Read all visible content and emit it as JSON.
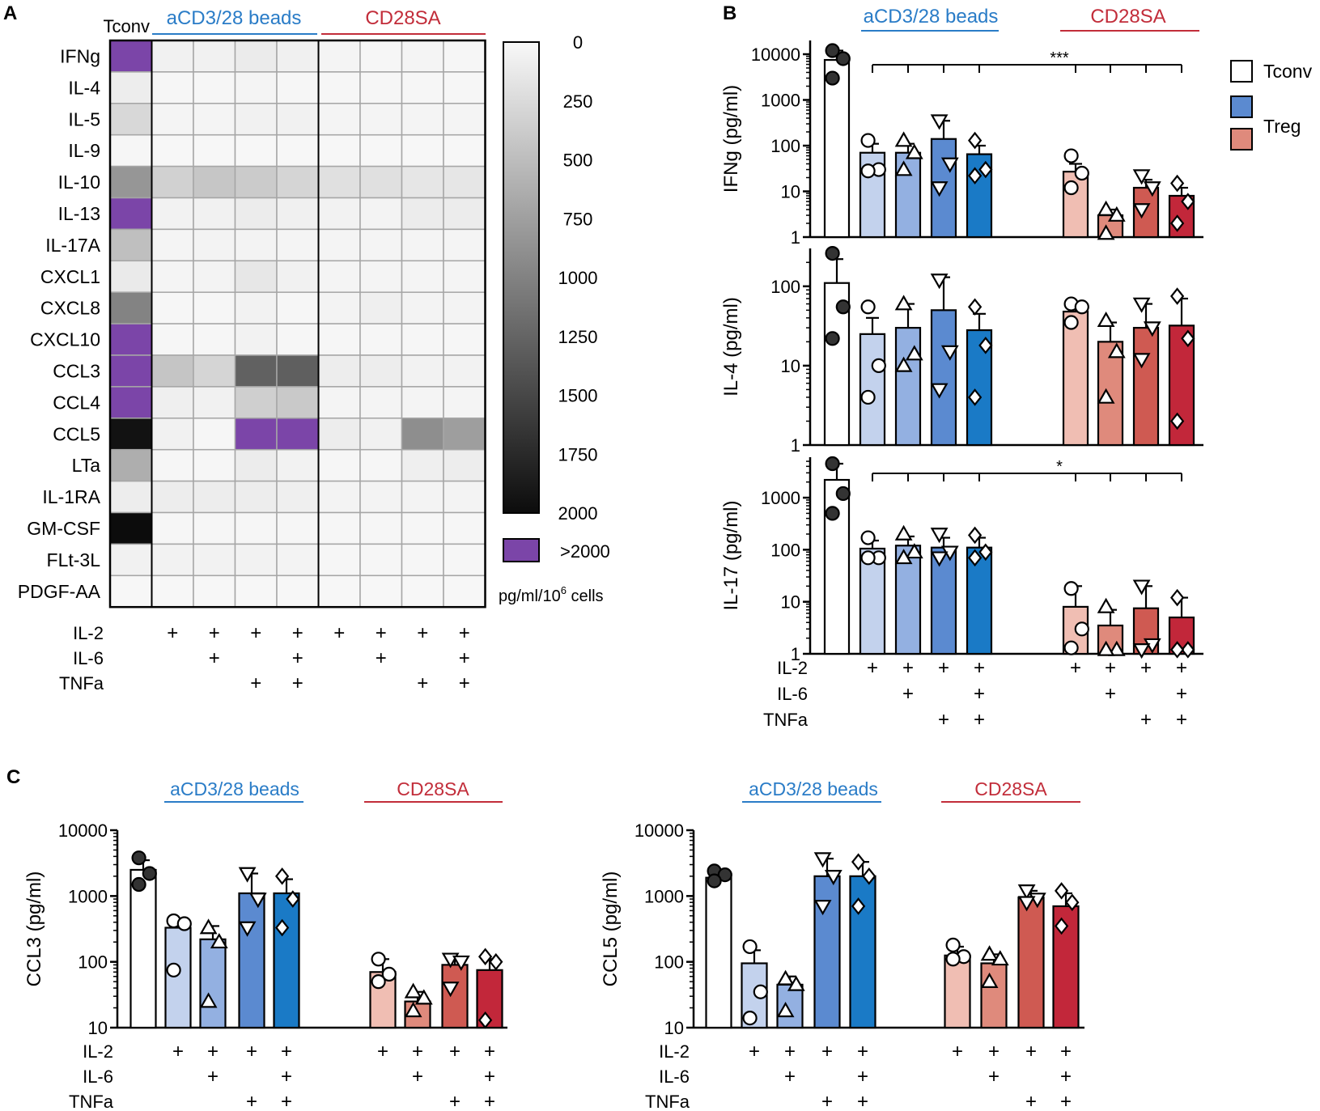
{
  "colors": {
    "tconv": "#ffffff",
    "blue": [
      "#c3d2ed",
      "#93b0e1",
      "#5b8ad0",
      "#1a7ac6"
    ],
    "red": [
      "#f0beb3",
      "#df8a7c",
      "#cf5a52",
      "#c2273a"
    ],
    "blue_line": "#2a7cc7",
    "red_line": "#c22d3a",
    "saturated": "#7b45a8",
    "open_symbol": "#ffffff",
    "filled_symbol": "#333333"
  },
  "panelA": {
    "letter": "A",
    "tconv_label": "Tconv",
    "group1_label": "aCD3/28 beads",
    "group2_label": "CD28SA",
    "colorbar_ticks": [
      "0",
      "250",
      "500",
      "750",
      "1000",
      "1250",
      "1500",
      "1750",
      "2000"
    ],
    "saturated_label": ">2000",
    "units_prefix": "pg/ml/10",
    "units_exp": "6",
    "units_suffix": " cells",
    "treat_labels": [
      "IL-2",
      "IL-6",
      "TNFa"
    ]
  },
  "panelB": {
    "letter": "B",
    "group1_label": "aCD3/28 beads",
    "group2_label": "CD28SA",
    "legend": {
      "tconv": "Tconv",
      "treg": "Treg"
    },
    "treat_labels": [
      "IL-2",
      "IL-6",
      "TNFa"
    ]
  },
  "panelC": {
    "letter": "C",
    "group1_label": "aCD3/28 beads",
    "group2_label": "CD28SA",
    "treat_labels": [
      "IL-2",
      "IL-6",
      "TNFa"
    ]
  },
  "chart_data": [
    {
      "type": "heatmap",
      "title": "",
      "units": "pg/ml/10^6 cells",
      "range": [
        0,
        2000
      ],
      "saturated_label": ">2000",
      "rows": [
        "IFNg",
        "IL-4",
        "IL-5",
        "IL-9",
        "IL-10",
        "IL-13",
        "IL-17A",
        "CXCL1",
        "CXCL8",
        "CXCL10",
        "CCL3",
        "CCL4",
        "CCL5",
        "LTa",
        "IL-1RA",
        "GM-CSF",
        "FLt-3L",
        "PDGF-AA"
      ],
      "columns": [
        "Tconv",
        "aCD3/28 IL-2",
        "aCD3/28 IL-2+IL-6",
        "aCD3/28 IL-2+TNFa",
        "aCD3/28 IL-2+IL-6+TNFa",
        "CD28SA IL-2",
        "CD28SA IL-2+IL-6",
        "CD28SA IL-2+TNFa",
        "CD28SA IL-2+IL-6+TNFa"
      ],
      "treatments": {
        "IL-2": [
          0,
          1,
          1,
          1,
          1,
          1,
          1,
          1,
          1
        ],
        "IL-6": [
          0,
          0,
          1,
          0,
          1,
          0,
          1,
          0,
          1
        ],
        "TNFa": [
          0,
          0,
          0,
          1,
          1,
          0,
          0,
          1,
          1
        ]
      },
      "values": [
        [
          ">2000",
          60,
          60,
          110,
          70,
          30,
          20,
          30,
          20
        ],
        [
          90,
          20,
          20,
          30,
          20,
          20,
          20,
          20,
          20
        ],
        [
          270,
          30,
          30,
          60,
          60,
          30,
          30,
          30,
          30
        ],
        [
          20,
          10,
          10,
          10,
          10,
          10,
          10,
          10,
          10
        ],
        [
          830,
          330,
          420,
          380,
          300,
          200,
          200,
          150,
          150
        ],
        [
          ">2000",
          50,
          60,
          100,
          70,
          50,
          40,
          100,
          100
        ],
        [
          480,
          30,
          40,
          40,
          30,
          30,
          30,
          30,
          30
        ],
        [
          120,
          30,
          40,
          140,
          60,
          30,
          30,
          30,
          30
        ],
        [
          990,
          20,
          20,
          50,
          20,
          40,
          80,
          40,
          40
        ],
        [
          ">2000",
          20,
          20,
          50,
          20,
          20,
          20,
          20,
          20
        ],
        [
          ">2000",
          430,
          300,
          1280,
          1300,
          90,
          90,
          50,
          50
        ],
        [
          ">2000",
          80,
          60,
          350,
          400,
          30,
          30,
          30,
          30
        ],
        [
          1950,
          60,
          20,
          ">2000",
          ">2000",
          90,
          60,
          900,
          760
        ],
        [
          630,
          20,
          20,
          100,
          50,
          20,
          20,
          80,
          90
        ],
        [
          90,
          90,
          90,
          90,
          80,
          40,
          40,
          40,
          40
        ],
        [
          2000,
          20,
          20,
          20,
          20,
          20,
          20,
          20,
          20
        ],
        [
          60,
          50,
          50,
          50,
          40,
          20,
          20,
          20,
          20
        ],
        [
          10,
          10,
          10,
          10,
          10,
          10,
          10,
          10,
          10
        ]
      ]
    },
    {
      "type": "bar",
      "scale": "log",
      "ylabel": "IFNg (pg/ml)",
      "ylim": [
        1,
        20000
      ],
      "yticks": [
        "1",
        "10",
        "100",
        "1000",
        "10000"
      ],
      "annotation": "***",
      "categories": [
        "Tconv",
        "beads IL-2",
        "beads IL-2+IL-6",
        "beads IL-2+TNFa",
        "beads IL-2+IL-6+TNFa",
        "CD28SA IL-2",
        "CD28SA IL-2+IL-6",
        "CD28SA IL-2+TNFa",
        "CD28SA IL-2+IL-6+TNFa"
      ],
      "bars": [
        7500,
        70,
        70,
        140,
        65,
        27,
        3,
        12,
        8
      ],
      "error_top": [
        12000,
        110,
        110,
        350,
        100,
        40,
        4,
        18,
        12
      ],
      "points": [
        [
          12000,
          8000,
          3000
        ],
        [
          130,
          30,
          28
        ],
        [
          130,
          70,
          30
        ],
        [
          350,
          40,
          12
        ],
        [
          130,
          30,
          22
        ],
        [
          60,
          25,
          12
        ],
        [
          4,
          3,
          1.2
        ],
        [
          22,
          12,
          4
        ],
        [
          15,
          6,
          2
        ]
      ]
    },
    {
      "type": "bar",
      "scale": "log",
      "ylabel": "IL-4 (pg/ml)",
      "ylim": [
        1,
        300
      ],
      "yticks": [
        "1",
        "10",
        "100"
      ],
      "categories": [
        "Tconv",
        "beads IL-2",
        "beads IL-2+IL-6",
        "beads IL-2+TNFa",
        "beads IL-2+IL-6+TNFa",
        "CD28SA IL-2",
        "CD28SA IL-2+IL-6",
        "CD28SA IL-2+TNFa",
        "CD28SA IL-2+IL-6+TNFa"
      ],
      "bars": [
        110,
        25,
        30,
        50,
        28,
        48,
        20,
        30,
        32
      ],
      "error_top": [
        220,
        40,
        60,
        130,
        45,
        60,
        35,
        60,
        70
      ],
      "points": [
        [
          260,
          55,
          22
        ],
        [
          55,
          10,
          4
        ],
        [
          60,
          14,
          10
        ],
        [
          120,
          15,
          5
        ],
        [
          55,
          18,
          4
        ],
        [
          60,
          55,
          35
        ],
        [
          37,
          15,
          4
        ],
        [
          60,
          30,
          12
        ],
        [
          75,
          22,
          2
        ]
      ]
    },
    {
      "type": "bar",
      "scale": "log",
      "ylabel": "IL-17 (pg/ml)",
      "ylim": [
        1,
        6000
      ],
      "yticks": [
        "1",
        "10",
        "100",
        "1000"
      ],
      "annotation": "*",
      "categories": [
        "Tconv",
        "beads IL-2",
        "beads IL-2+IL-6",
        "beads IL-2+TNFa",
        "beads IL-2+IL-6+TNFa",
        "CD28SA IL-2",
        "CD28SA IL-2+IL-6",
        "CD28SA IL-2+TNFa",
        "CD28SA IL-2+IL-6+TNFa"
      ],
      "bars": [
        2200,
        105,
        120,
        110,
        110,
        8,
        3.5,
        7.5,
        5
      ],
      "error_top": [
        4500,
        150,
        180,
        170,
        170,
        20,
        7,
        20,
        12
      ],
      "points": [
        [
          4500,
          1200,
          500
        ],
        [
          170,
          70,
          70
        ],
        [
          200,
          90,
          70
        ],
        [
          200,
          90,
          70
        ],
        [
          190,
          90,
          70
        ],
        [
          18,
          3,
          1.3
        ],
        [
          8,
          1.2,
          1.2
        ],
        [
          20,
          1.5,
          1.2
        ],
        [
          12,
          1.2,
          1.2
        ]
      ]
    },
    {
      "type": "bar",
      "scale": "log",
      "ylabel": "CCL3 (pg/ml)",
      "ylim": [
        10,
        10000
      ],
      "yticks": [
        "10",
        "100",
        "1000",
        "10000"
      ],
      "categories": [
        "Tconv",
        "beads IL-2",
        "beads IL-2+IL-6",
        "beads IL-2+TNFa",
        "beads IL-2+IL-6+TNFa",
        "CD28SA IL-2",
        "CD28SA IL-2+IL-6",
        "CD28SA IL-2+TNFa",
        "CD28SA IL-2+IL-6+TNFa"
      ],
      "bars": [
        2500,
        330,
        220,
        1100,
        1100,
        70,
        25,
        90,
        75
      ],
      "error_top": [
        3500,
        420,
        350,
        2200,
        1800,
        110,
        35,
        120,
        110
      ],
      "points": [
        [
          3800,
          2200,
          1500
        ],
        [
          420,
          380,
          75
        ],
        [
          330,
          200,
          25
        ],
        [
          2200,
          900,
          330
        ],
        [
          2000,
          900,
          330
        ],
        [
          110,
          65,
          50
        ],
        [
          35,
          28,
          18
        ],
        [
          110,
          100,
          40
        ],
        [
          120,
          100,
          13
        ]
      ]
    },
    {
      "type": "bar",
      "scale": "log",
      "ylabel": "CCL5 (pg/ml)",
      "ylim": [
        10,
        10000
      ],
      "yticks": [
        "10",
        "100",
        "1000",
        "10000"
      ],
      "categories": [
        "Tconv",
        "beads IL-2",
        "beads IL-2+IL-6",
        "beads IL-2+TNFa",
        "beads IL-2+IL-6+TNFa",
        "CD28SA IL-2",
        "CD28SA IL-2+IL-6",
        "CD28SA IL-2+TNFa",
        "CD28SA IL-2+IL-6+TNFa"
      ],
      "bars": [
        1900,
        95,
        45,
        2000,
        2000,
        125,
        95,
        950,
        700
      ],
      "error_top": [
        2400,
        150,
        60,
        3700,
        3300,
        170,
        130,
        1200,
        1100
      ],
      "points": [
        [
          2400,
          2100,
          1700
        ],
        [
          170,
          35,
          14
        ],
        [
          55,
          45,
          18
        ],
        [
          3700,
          2000,
          700
        ],
        [
          3300,
          2000,
          700
        ],
        [
          180,
          120,
          110
        ],
        [
          130,
          110,
          50
        ],
        [
          1200,
          900,
          800
        ],
        [
          1200,
          800,
          350
        ]
      ]
    }
  ]
}
